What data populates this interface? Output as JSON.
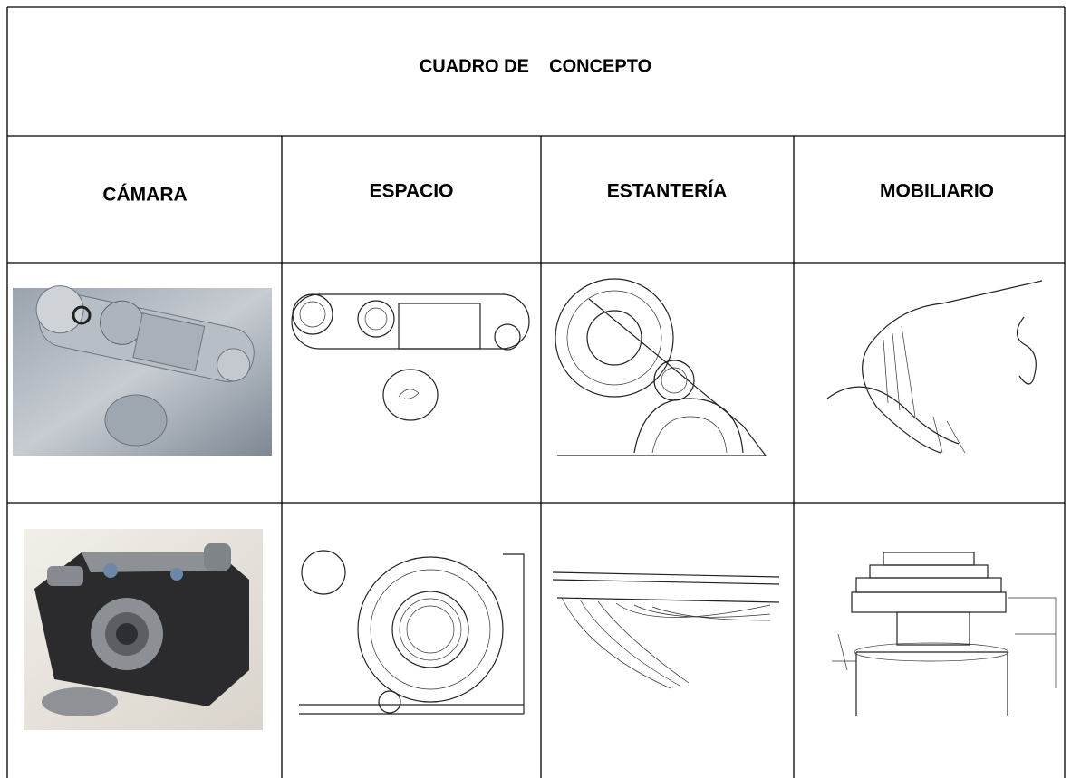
{
  "title": "CUADRO DE    CONCEPTO",
  "columns": [
    "CÁMARA",
    "ESPACIO",
    "ESTANTERÍA",
    "MOBILIARIO"
  ]
}
